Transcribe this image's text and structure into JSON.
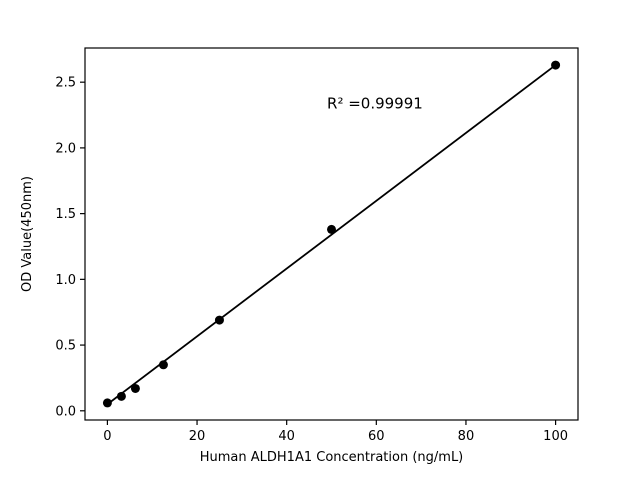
{
  "figure": {
    "background": "#ffffff"
  },
  "chart_data": {
    "type": "scatter",
    "title": "",
    "xlabel": "Human ALDH1A1 Concentration (ng/mL)",
    "ylabel": "OD Value(450nm)",
    "x": [
      0,
      3.125,
      6.25,
      12.5,
      25,
      50,
      100
    ],
    "y": [
      0.06,
      0.11,
      0.17,
      0.35,
      0.69,
      1.38,
      2.63
    ],
    "fit_line": {
      "x": [
        0,
        100
      ],
      "y": [
        0.05,
        2.63
      ]
    },
    "annotation": {
      "text": "R² =0.99991",
      "x": 49,
      "y": 2.3
    },
    "xticks": [
      0,
      20,
      40,
      60,
      80,
      100
    ],
    "yticks": [
      0.0,
      0.5,
      1.0,
      1.5,
      2.0,
      2.5
    ],
    "xlim": [
      -5,
      105
    ],
    "ylim": [
      -0.07,
      2.76
    ],
    "grid": false,
    "legend": null,
    "marker_color": "#000000",
    "line_color": "#000000",
    "axis_color": "#000000",
    "marker_size": 4.5,
    "line_width": 1.8
  }
}
